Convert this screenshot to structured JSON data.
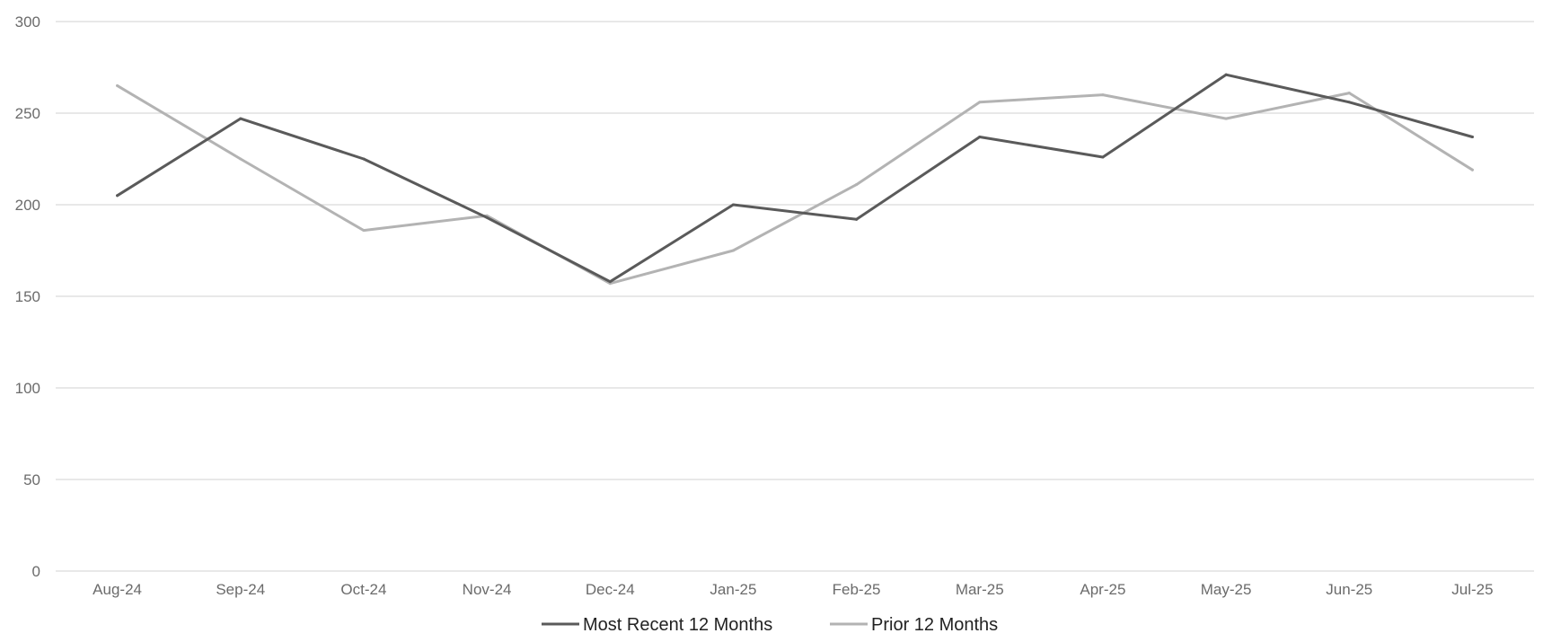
{
  "chart_data": {
    "type": "line",
    "title": "",
    "xlabel": "",
    "ylabel": "",
    "categories": [
      "Aug-24",
      "Sep-24",
      "Oct-24",
      "Nov-24",
      "Dec-24",
      "Jan-25",
      "Feb-25",
      "Mar-25",
      "Apr-25",
      "May-25",
      "Jun-25",
      "Jul-25"
    ],
    "ylim": [
      0,
      300
    ],
    "yticks": [
      0,
      50,
      100,
      150,
      200,
      250,
      300
    ],
    "grid": true,
    "legend_position": "bottom",
    "series": [
      {
        "name": "Most Recent 12 Months",
        "color": "#5a5a5a",
        "values": [
          205,
          247,
          225,
          193,
          158,
          200,
          192,
          237,
          226,
          271,
          256,
          237
        ]
      },
      {
        "name": "Prior 12 Months",
        "color": "#b3b3b3",
        "values": [
          265,
          225,
          186,
          194,
          157,
          175,
          211,
          256,
          260,
          247,
          261,
          219
        ]
      }
    ]
  }
}
